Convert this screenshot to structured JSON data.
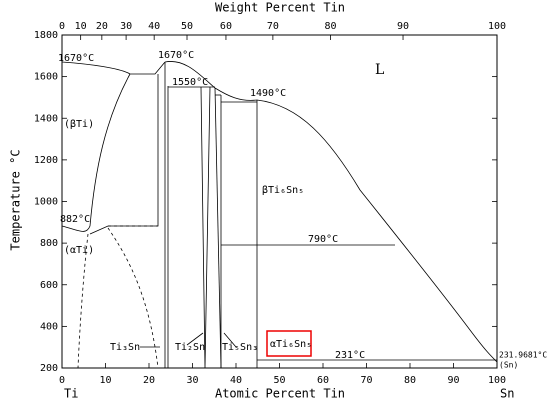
{
  "axes": {
    "top_label": "Weight Percent Tin",
    "bottom_label": "Atomic Percent Tin",
    "left_label": "Temperature °C",
    "left_end": "Ti",
    "right_end": "Sn",
    "xticks": [
      0,
      10,
      20,
      30,
      40,
      50,
      60,
      70,
      80,
      90,
      100
    ],
    "top_ticks": [
      0,
      10,
      20,
      30,
      40,
      50,
      60,
      70,
      80,
      90,
      100
    ],
    "ylim": [
      200,
      1800
    ],
    "yticks": [
      200,
      400,
      600,
      800,
      1000,
      1200,
      1400,
      1600,
      1800
    ]
  },
  "annotations": {
    "t1670a": "1670°C",
    "t1670b": "1670°C",
    "t1550": "1550°C",
    "t1490": "1490°C",
    "t882": "882°C",
    "t790": "790°C",
    "t231": "231°C",
    "t2319": "231.9681°C",
    "sn": "(Sn)",
    "liquid": "L",
    "beta": "(βTi)",
    "alpha": "(αTi)"
  },
  "phases": {
    "ti3sn": "Ti₃Sn",
    "ti2sn": "Ti₂Sn",
    "ti5sn3": "Ti₅Sn₃",
    "bti6sn5": "βTi₆Sn₅",
    "ati6sn5": "αTi₆Sn₅"
  }
}
